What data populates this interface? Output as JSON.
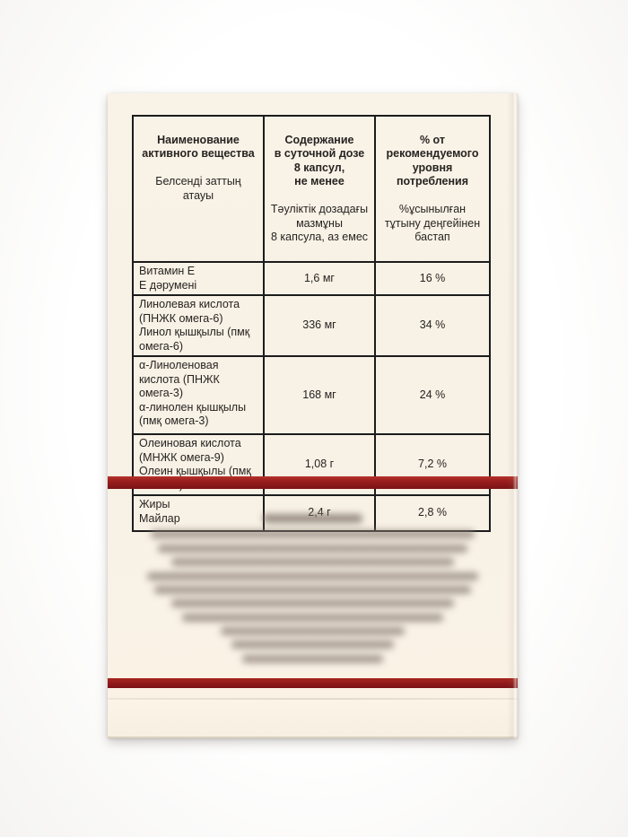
{
  "package": {
    "table": {
      "headers": [
        {
          "title": "Наименование\nактивного вещества",
          "subtitle": "Белсенді заттың\nатауы"
        },
        {
          "title": "Содержание\nв суточной дозе\n8 капсул,\nне менее",
          "subtitle": "Тәуліктік дозадағы\nмазмұны\n8 капсула, аз емес"
        },
        {
          "title": "% от\nрекомендуемого\nуровня\nпотребления",
          "subtitle": "%ұсынылған\nтұтыну деңгейінен\nбастап"
        }
      ],
      "rows": [
        {
          "name": "Витамин Е\nЕ дәрумені",
          "amount": "1,6 мг",
          "percent": "16 %"
        },
        {
          "name": "Линолевая кислота\n(ПНЖК омега-6)\nЛинол қышқылы (пмқ\nомега-6)",
          "amount": "336 мг",
          "percent": "34 %"
        },
        {
          "name": "α-Линоленовая\nкислота (ПНЖК\nомега-3)\nα-линолен қышқылы\n(пмқ омега-3)",
          "amount": "168 мг",
          "percent": "24 %"
        },
        {
          "name": "Олеиновая кислота\n(МНЖК омега-9)\nОлеин қышқылы (пмқ\nомега-9)",
          "amount": "1,08 г",
          "percent": "7,2 %"
        },
        {
          "name": "Жиры\nМайлар",
          "amount": "2,4 г",
          "percent": "2,8 %"
        }
      ]
    },
    "colors": {
      "stripe_red_top": "#a8261f",
      "stripe_red_dark": "#7a1215",
      "box_cream": "#f8f1e6",
      "table_border": "#1c1c1c"
    },
    "blurred_block": {
      "line_widths_pct": [
        28,
        92,
        88,
        80,
        94,
        90,
        80,
        74,
        52,
        46,
        40
      ]
    }
  }
}
